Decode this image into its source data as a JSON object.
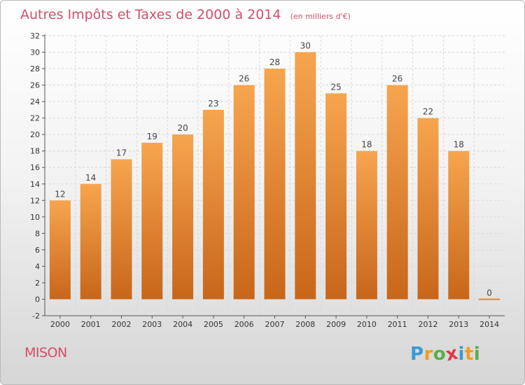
{
  "location": "MISON",
  "brand": {
    "text": "Proxiti",
    "letters": [
      {
        "char": "P",
        "color": "#3b9ad6"
      },
      {
        "char": "r",
        "color": "#f39c1f"
      },
      {
        "char": "o",
        "color": "#56b04a"
      },
      {
        "char": "x",
        "color": "#e0384c"
      },
      {
        "char": "i",
        "color": "#3b9ad6"
      },
      {
        "char": "t",
        "color": "#f39c1f"
      },
      {
        "char": "i",
        "color": "#56b04a"
      }
    ]
  },
  "chart_data": {
    "type": "bar",
    "title": "Autres Impôts et Taxes de 2000 à 2014",
    "subtitle": "(en milliers d'€)",
    "categories": [
      "2000",
      "2001",
      "2002",
      "2003",
      "2004",
      "2005",
      "2006",
      "2007",
      "2008",
      "2009",
      "2010",
      "2011",
      "2012",
      "2013",
      "2014"
    ],
    "values": [
      12,
      14,
      17,
      19,
      20,
      23,
      26,
      28,
      30,
      25,
      18,
      26,
      22,
      18,
      0
    ],
    "ylim": [
      -2,
      32
    ],
    "yticks": [
      -2,
      0,
      2,
      4,
      6,
      8,
      10,
      12,
      14,
      16,
      18,
      20,
      22,
      24,
      26,
      28,
      30,
      32
    ],
    "grid": true,
    "bar_color_top": "#f7a54f",
    "bar_color_bottom": "#c8661a",
    "title_color": "#d44e6a"
  }
}
